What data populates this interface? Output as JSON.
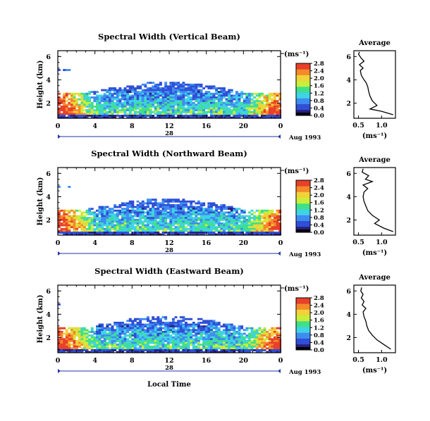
{
  "chart_data": {
    "type": "heatmap",
    "xlabel": "Local Time",
    "colorbar_ticks": [
      "0.0",
      "0.4",
      "0.8",
      "1.2",
      "1.6",
      "2.0",
      "2.4",
      "2.8"
    ],
    "colorbar_unit": "(ms⁻¹)",
    "colors": [
      "#2a1f80",
      "#2f4fd6",
      "#3f8cf0",
      "#3fd3e6",
      "#3fe08a",
      "#c7ef3a",
      "#f2d23a",
      "#f48a2a",
      "#e8402a"
    ],
    "panels": [
      {
        "title": "Spectral Width (Vertical Beam)",
        "ylabel": "Height (km)",
        "y_ticks": [
          "2",
          "4",
          "6"
        ],
        "ylim": [
          0.7,
          6.5
        ],
        "x_ticks": [
          "0",
          "4",
          "8",
          "12",
          "16",
          "20",
          "0"
        ],
        "xlim": [
          0,
          24
        ],
        "day_label": "28",
        "date_label": "Aug 1993",
        "avg": {
          "title": "Average",
          "x_ticks": [
            "0.5",
            "1.0"
          ],
          "xlim": [
            0.4,
            1.3
          ],
          "y_ticks": [
            "2",
            "4",
            "6"
          ],
          "xlabel": "(ms⁻¹)",
          "profile": [
            [
              1.25,
              1.0
            ],
            [
              1.0,
              1.3
            ],
            [
              0.75,
              1.5
            ],
            [
              0.9,
              1.8
            ],
            [
              0.8,
              2.2
            ],
            [
              0.75,
              2.6
            ],
            [
              0.72,
              3.0
            ],
            [
              0.7,
              3.4
            ],
            [
              0.68,
              3.6
            ],
            [
              0.66,
              3.8
            ],
            [
              0.62,
              4.0
            ],
            [
              0.56,
              4.4
            ],
            [
              0.54,
              4.8
            ],
            [
              0.6,
              5.0
            ],
            [
              0.52,
              5.3
            ],
            [
              0.62,
              5.6
            ],
            [
              0.55,
              5.9
            ],
            [
              0.5,
              6.2
            ],
            [
              0.52,
              6.4
            ]
          ]
        }
      },
      {
        "title": "Spectral Width (Northward Beam)",
        "ylabel": "Height (km)",
        "y_ticks": [
          "2",
          "4",
          "6"
        ],
        "ylim": [
          0.7,
          6.5
        ],
        "x_ticks": [
          "0",
          "4",
          "8",
          "12",
          "16",
          "20",
          "0"
        ],
        "xlim": [
          0,
          24
        ],
        "day_label": "28",
        "date_label": "Aug 1993",
        "avg": {
          "title": "Average",
          "x_ticks": [
            "0.5",
            "1.0"
          ],
          "xlim": [
            0.4,
            1.3
          ],
          "y_ticks": [
            "2",
            "4",
            "6"
          ],
          "xlabel": "(ms⁻¹)",
          "profile": [
            [
              1.25,
              1.0
            ],
            [
              1.05,
              1.3
            ],
            [
              0.85,
              1.7
            ],
            [
              0.95,
              2.0
            ],
            [
              0.8,
              2.4
            ],
            [
              0.7,
              2.8
            ],
            [
              0.66,
              3.2
            ],
            [
              0.62,
              3.6
            ],
            [
              0.6,
              4.0
            ],
            [
              0.62,
              4.4
            ],
            [
              0.7,
              4.7
            ],
            [
              0.6,
              5.0
            ],
            [
              0.8,
              5.3
            ],
            [
              0.65,
              5.5
            ],
            [
              0.72,
              5.8
            ],
            [
              0.58,
              6.1
            ],
            [
              0.6,
              6.4
            ]
          ]
        }
      },
      {
        "title": "Spectral Width (Eastward Beam)",
        "ylabel": "Height (km)",
        "y_ticks": [
          "2",
          "4",
          "6"
        ],
        "ylim": [
          0.7,
          6.5
        ],
        "x_ticks": [
          "0",
          "4",
          "8",
          "12",
          "16",
          "20",
          "0"
        ],
        "xlim": [
          0,
          24
        ],
        "day_label": "28",
        "date_label": "Aug 1993",
        "avg": {
          "title": "Average",
          "x_ticks": [
            "0.5",
            "1.0"
          ],
          "xlim": [
            0.4,
            1.3
          ],
          "y_ticks": [
            "2",
            "4",
            "6"
          ],
          "xlabel": "(ms⁻¹)",
          "profile": [
            [
              1.2,
              1.0
            ],
            [
              1.05,
              1.4
            ],
            [
              0.9,
              1.8
            ],
            [
              0.8,
              2.2
            ],
            [
              0.72,
              2.6
            ],
            [
              0.68,
              3.0
            ],
            [
              0.66,
              3.4
            ],
            [
              0.62,
              3.8
            ],
            [
              0.6,
              4.2
            ],
            [
              0.66,
              4.5
            ],
            [
              0.58,
              4.8
            ],
            [
              0.62,
              5.1
            ],
            [
              0.56,
              5.4
            ],
            [
              0.6,
              5.7
            ],
            [
              0.55,
              6.0
            ],
            [
              0.57,
              6.3
            ]
          ]
        }
      }
    ]
  }
}
